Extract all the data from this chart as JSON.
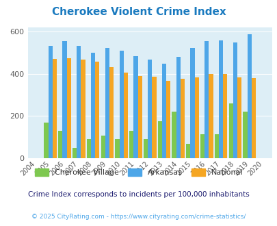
{
  "title": "Cherokee Violent Crime Index",
  "years": [
    2004,
    2005,
    2006,
    2007,
    2008,
    2009,
    2010,
    2011,
    2012,
    2013,
    2014,
    2015,
    2016,
    2017,
    2018,
    2019,
    2020
  ],
  "cherokee": [
    0,
    170,
    130,
    48,
    90,
    108,
    92,
    130,
    90,
    175,
    220,
    68,
    112,
    112,
    260,
    220,
    0
  ],
  "arkansas": [
    0,
    530,
    555,
    530,
    500,
    520,
    507,
    482,
    468,
    447,
    480,
    522,
    555,
    557,
    547,
    585,
    0
  ],
  "national": [
    0,
    469,
    473,
    467,
    457,
    430,
    404,
    388,
    387,
    367,
    375,
    383,
    400,
    397,
    381,
    379,
    0
  ],
  "cherokee_color": "#7ec850",
  "arkansas_color": "#4da6e8",
  "national_color": "#f5a623",
  "bg_color": "#ddeef6",
  "ylim": [
    0,
    620
  ],
  "yticks": [
    0,
    200,
    400,
    600
  ],
  "subtitle": "Crime Index corresponds to incidents per 100,000 inhabitants",
  "footer": "© 2025 CityRating.com - https://www.cityrating.com/crime-statistics/",
  "title_color": "#1a7abf",
  "subtitle_color": "#1a1a6e",
  "footer_color": "#4da6e8",
  "legend_color": "#333333"
}
